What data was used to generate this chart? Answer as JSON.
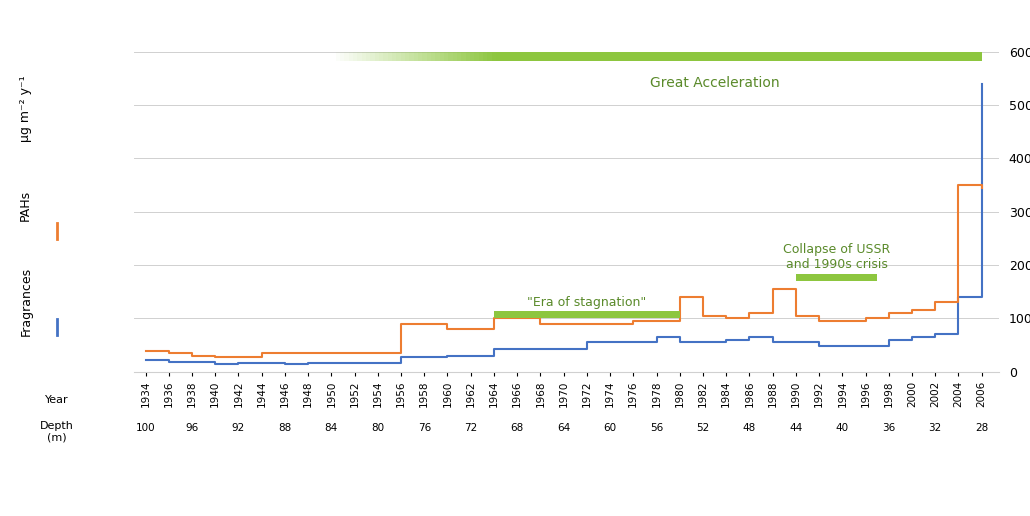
{
  "years": [
    1934,
    1936,
    1938,
    1940,
    1942,
    1944,
    1946,
    1948,
    1950,
    1952,
    1954,
    1956,
    1958,
    1960,
    1962,
    1964,
    1966,
    1968,
    1970,
    1972,
    1974,
    1976,
    1978,
    1980,
    1982,
    1984,
    1986,
    1988,
    1990,
    1992,
    1994,
    1996,
    1998,
    2000,
    2002,
    2004,
    2006
  ],
  "fragrances": [
    22,
    17,
    17,
    14,
    16,
    16,
    15,
    16,
    16,
    16,
    16,
    27,
    27,
    30,
    30,
    43,
    43,
    43,
    43,
    55,
    55,
    55,
    65,
    55,
    55,
    60,
    65,
    55,
    55,
    48,
    48,
    48,
    60,
    65,
    70,
    140,
    540
  ],
  "pahs": [
    38,
    35,
    30,
    28,
    28,
    34,
    34,
    34,
    34,
    34,
    34,
    90,
    90,
    80,
    80,
    100,
    100,
    90,
    90,
    90,
    90,
    95,
    95,
    140,
    105,
    100,
    110,
    155,
    105,
    95,
    95,
    100,
    110,
    115,
    130,
    350,
    345
  ],
  "year_tick_every2": [
    1934,
    1936,
    1938,
    1940,
    1942,
    1944,
    1946,
    1948,
    1950,
    1952,
    1954,
    1956,
    1958,
    1960,
    1962,
    1964,
    1966,
    1968,
    1970,
    1972,
    1974,
    1976,
    1978,
    1980,
    1982,
    1984,
    1986,
    1988,
    1990,
    1992,
    1994,
    1996,
    1998,
    2000,
    2002,
    2004,
    2006
  ],
  "depth_tick_years": [
    1934,
    1938,
    1942,
    1946,
    1950,
    1954,
    1958,
    1962,
    1966,
    1970,
    1974,
    1978,
    1982,
    1986,
    1990,
    1994,
    1998,
    2002,
    2006
  ],
  "depth_tick_labels": [
    "100",
    "96",
    "92",
    "88",
    "84",
    "80",
    "76",
    "72",
    "68",
    "64",
    "60",
    "56",
    "52",
    "48",
    "44",
    "40",
    "36",
    "32",
    "28"
  ],
  "ylim": [
    0,
    600
  ],
  "yticks": [
    0,
    100,
    200,
    300,
    400,
    500,
    600
  ],
  "xlim": [
    1933,
    2007.5
  ],
  "great_accel_start_year": 1950,
  "great_accel_end_year": 2006,
  "era_stag_start": 1964,
  "era_stag_end": 1980,
  "ussr_start": 1990,
  "ussr_end": 1997,
  "green_bar_color": "#8DC63F",
  "blue_line_color": "#4472C4",
  "orange_line_color": "#ED7D31",
  "background_color": "#FFFFFF",
  "grid_color": "#D0D0D0",
  "great_accel_label": "Great Acceleration",
  "era_stag_label": "\"Era of stagnation\"",
  "ussr_label": "Collapse of USSR\nand 1990s crisis",
  "label_ug": "μg m⁻² y⁻¹",
  "label_pahs": "PAHs",
  "label_fragrances": "Fragrances",
  "label_year": "Year",
  "label_depth": "Depth\n(m)"
}
